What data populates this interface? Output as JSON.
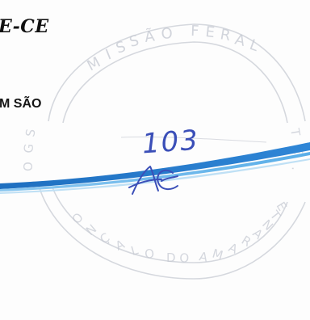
{
  "header": {
    "title": "E-CE"
  },
  "body": {
    "subtitle": "M SÃO"
  },
  "annotation": {
    "page_number": "103"
  },
  "stamp": {
    "top_text": "MISSÃO FERAL",
    "bottom_text": "SÃO GONÇALO DO AMARANTE-CE",
    "color": "#c9ccd4"
  },
  "colors": {
    "swoosh_dark": "#1e6fc0",
    "swoosh_light": "#5aaee8",
    "ink": "#3b4fb8"
  }
}
